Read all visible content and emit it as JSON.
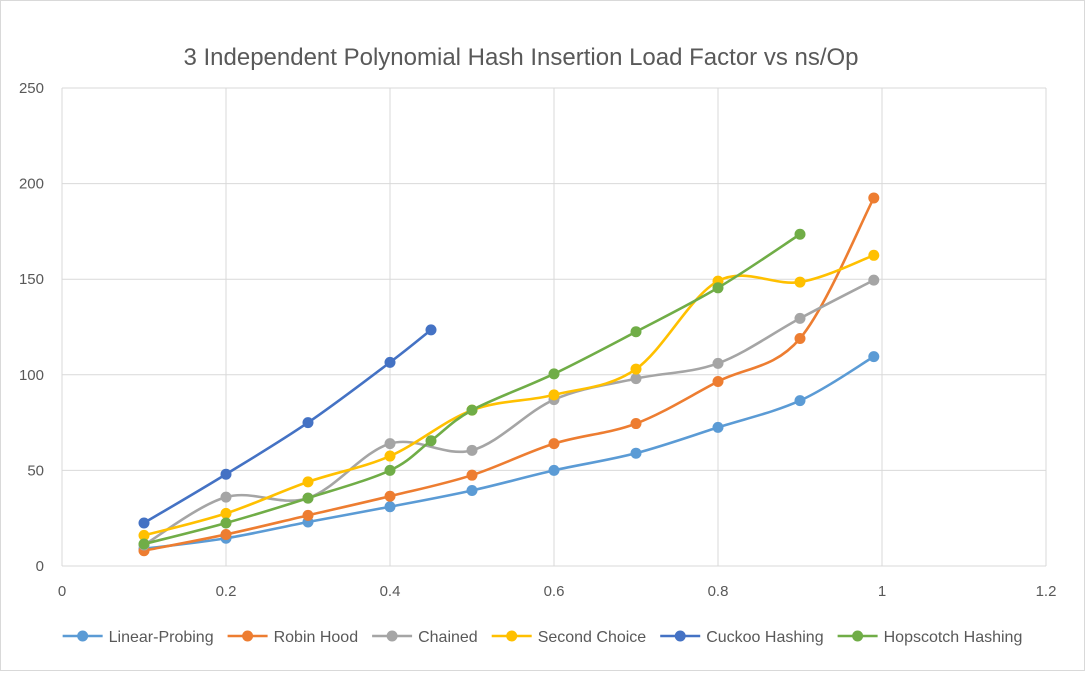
{
  "chart_data": {
    "type": "line",
    "title": "3 Independent  Polynomial Hash Insertion Load Factor vs ns/Op",
    "xlabel": "",
    "ylabel": "",
    "xlim": [
      0,
      1.2
    ],
    "ylim": [
      0,
      250
    ],
    "x_ticks": [
      "0",
      "0.2",
      "0.4",
      "0.6",
      "0.8",
      "1",
      "1.2"
    ],
    "y_ticks": [
      "0",
      "50",
      "100",
      "150",
      "200",
      "250"
    ],
    "grid": true,
    "legend_position": "bottom",
    "smooth": true,
    "series": [
      {
        "name": "Linear-Probing",
        "color": "#5b9bd5",
        "x": [
          0.1,
          0.2,
          0.3,
          0.4,
          0.5,
          0.6,
          0.7,
          0.8,
          0.9,
          0.99
        ],
        "y": [
          9,
          14.5,
          23,
          31,
          39.5,
          50,
          59,
          72.5,
          86.5,
          109.5
        ]
      },
      {
        "name": "Robin Hood",
        "color": "#ed7d31",
        "x": [
          0.1,
          0.2,
          0.3,
          0.4,
          0.5,
          0.6,
          0.7,
          0.8,
          0.9,
          0.99
        ],
        "y": [
          8,
          16.5,
          26.5,
          36.5,
          47.5,
          64,
          74.5,
          96.5,
          119,
          192.5
        ]
      },
      {
        "name": "Chained",
        "color": "#a5a5a5",
        "x": [
          0.1,
          0.2,
          0.3,
          0.4,
          0.5,
          0.6,
          0.7,
          0.8,
          0.9,
          0.99
        ],
        "y": [
          11,
          36,
          35.5,
          64,
          60.5,
          87,
          98,
          106,
          129.5,
          149.5
        ]
      },
      {
        "name": "Second Choice",
        "color": "#ffc000",
        "x": [
          0.1,
          0.2,
          0.3,
          0.4,
          0.5,
          0.6,
          0.7,
          0.8,
          0.9,
          0.99
        ],
        "y": [
          16,
          27.5,
          44,
          57.5,
          81.5,
          89.5,
          103,
          149,
          148.5,
          162.5
        ]
      },
      {
        "name": "Cuckoo Hashing",
        "color": "#4472c4",
        "x": [
          0.1,
          0.2,
          0.3,
          0.4,
          0.45
        ],
        "y": [
          22.5,
          48,
          75,
          106.5,
          123.5
        ]
      },
      {
        "name": "Hopscotch Hashing",
        "color": "#70ad47",
        "x": [
          0.1,
          0.2,
          0.3,
          0.4,
          0.45,
          0.5,
          0.6,
          0.7,
          0.8,
          0.9
        ],
        "y": [
          11.5,
          22.5,
          35.5,
          50,
          65.5,
          81.5,
          100.5,
          122.5,
          145.5,
          173.5
        ]
      }
    ]
  }
}
